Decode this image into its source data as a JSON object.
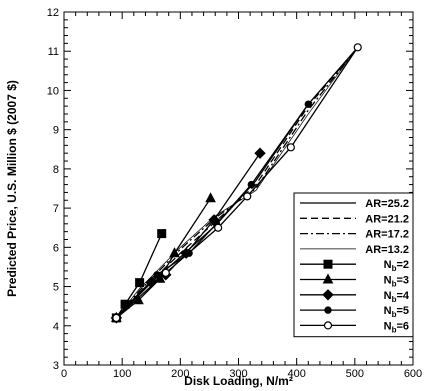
{
  "chart_data": {
    "type": "line",
    "xlabel": "Disk Loading, N/m²",
    "ylabel": "Predicted Price, U.S. Million $ (2007 $)",
    "xlim": [
      0,
      600
    ],
    "ylim": [
      3,
      12
    ],
    "x_ticks": [
      "0",
      "100",
      "200",
      "300",
      "400",
      "500",
      "600"
    ],
    "y_ticks": [
      "3",
      "4",
      "5",
      "6",
      "7",
      "8",
      "9",
      "10",
      "11",
      "12"
    ],
    "grid": false,
    "legend_position": "bottom-right",
    "series": [
      {
        "name": "AR=25.2",
        "group": "AR",
        "line": "solid",
        "marker": "none",
        "points": [
          [
            90,
            4.2
          ],
          [
            130,
            4.85
          ],
          [
            200,
            5.75
          ],
          [
            260,
            6.55
          ],
          [
            330,
            7.7
          ],
          [
            420,
            9.65
          ],
          [
            505,
            11.1
          ]
        ]
      },
      {
        "name": "AR=21.2",
        "group": "AR",
        "line": "dashed",
        "marker": "none",
        "points": [
          [
            90,
            4.2
          ],
          [
            130,
            4.85
          ],
          [
            200,
            5.85
          ],
          [
            260,
            6.65
          ],
          [
            330,
            7.6
          ],
          [
            420,
            9.6
          ],
          [
            505,
            11.1
          ]
        ]
      },
      {
        "name": "AR=17.2",
        "group": "AR",
        "line": "dashdot",
        "marker": "none",
        "points": [
          [
            90,
            4.2
          ],
          [
            130,
            4.9
          ],
          [
            200,
            5.95
          ],
          [
            260,
            6.75
          ],
          [
            330,
            7.5
          ],
          [
            420,
            9.5
          ],
          [
            505,
            11.1
          ]
        ]
      },
      {
        "name": "AR=13.2",
        "group": "AR",
        "line": "thin",
        "marker": "none",
        "points": [
          [
            90,
            4.2
          ],
          [
            130,
            4.95
          ],
          [
            200,
            6.0
          ],
          [
            260,
            6.8
          ],
          [
            330,
            7.45
          ],
          [
            420,
            9.4
          ],
          [
            505,
            11.1
          ]
        ]
      },
      {
        "name": "N_b=2",
        "label_main": "N",
        "label_sub": "b",
        "label_tail": "=2",
        "group": "Nb",
        "line": "solid",
        "marker": "square",
        "points": [
          [
            90,
            4.2
          ],
          [
            105,
            4.55
          ],
          [
            130,
            5.1
          ],
          [
            168,
            6.35
          ]
        ]
      },
      {
        "name": "N_b=3",
        "label_main": "N",
        "label_sub": "b",
        "label_tail": "=3",
        "group": "Nb",
        "line": "solid",
        "marker": "triangle",
        "points": [
          [
            90,
            4.2
          ],
          [
            128,
            4.65
          ],
          [
            165,
            5.2
          ],
          [
            190,
            5.85
          ],
          [
            252,
            7.25
          ]
        ]
      },
      {
        "name": "N_b=4",
        "label_main": "N",
        "label_sub": "b",
        "label_tail": "=4",
        "group": "Nb",
        "line": "solid",
        "marker": "diamond",
        "points": [
          [
            90,
            4.2
          ],
          [
            150,
            5.1
          ],
          [
            175,
            5.3
          ],
          [
            210,
            5.85
          ],
          [
            258,
            6.7
          ],
          [
            337,
            8.4
          ]
        ]
      },
      {
        "name": "N_b=5",
        "label_main": "N",
        "label_sub": "b",
        "label_tail": "=5",
        "group": "Nb",
        "line": "solid",
        "marker": "circle-filled",
        "points": [
          [
            90,
            4.2
          ],
          [
            160,
            5.3
          ],
          [
            215,
            5.85
          ],
          [
            262,
            6.6
          ],
          [
            322,
            7.6
          ],
          [
            420,
            9.65
          ]
        ]
      },
      {
        "name": "N_b=6",
        "label_main": "N",
        "label_sub": "b",
        "label_tail": "=6",
        "group": "Nb",
        "line": "solid",
        "marker": "circle-open",
        "points": [
          [
            90,
            4.2
          ],
          [
            175,
            5.35
          ],
          [
            265,
            6.5
          ],
          [
            315,
            7.3
          ],
          [
            390,
            8.55
          ],
          [
            505,
            11.1
          ]
        ]
      }
    ]
  }
}
